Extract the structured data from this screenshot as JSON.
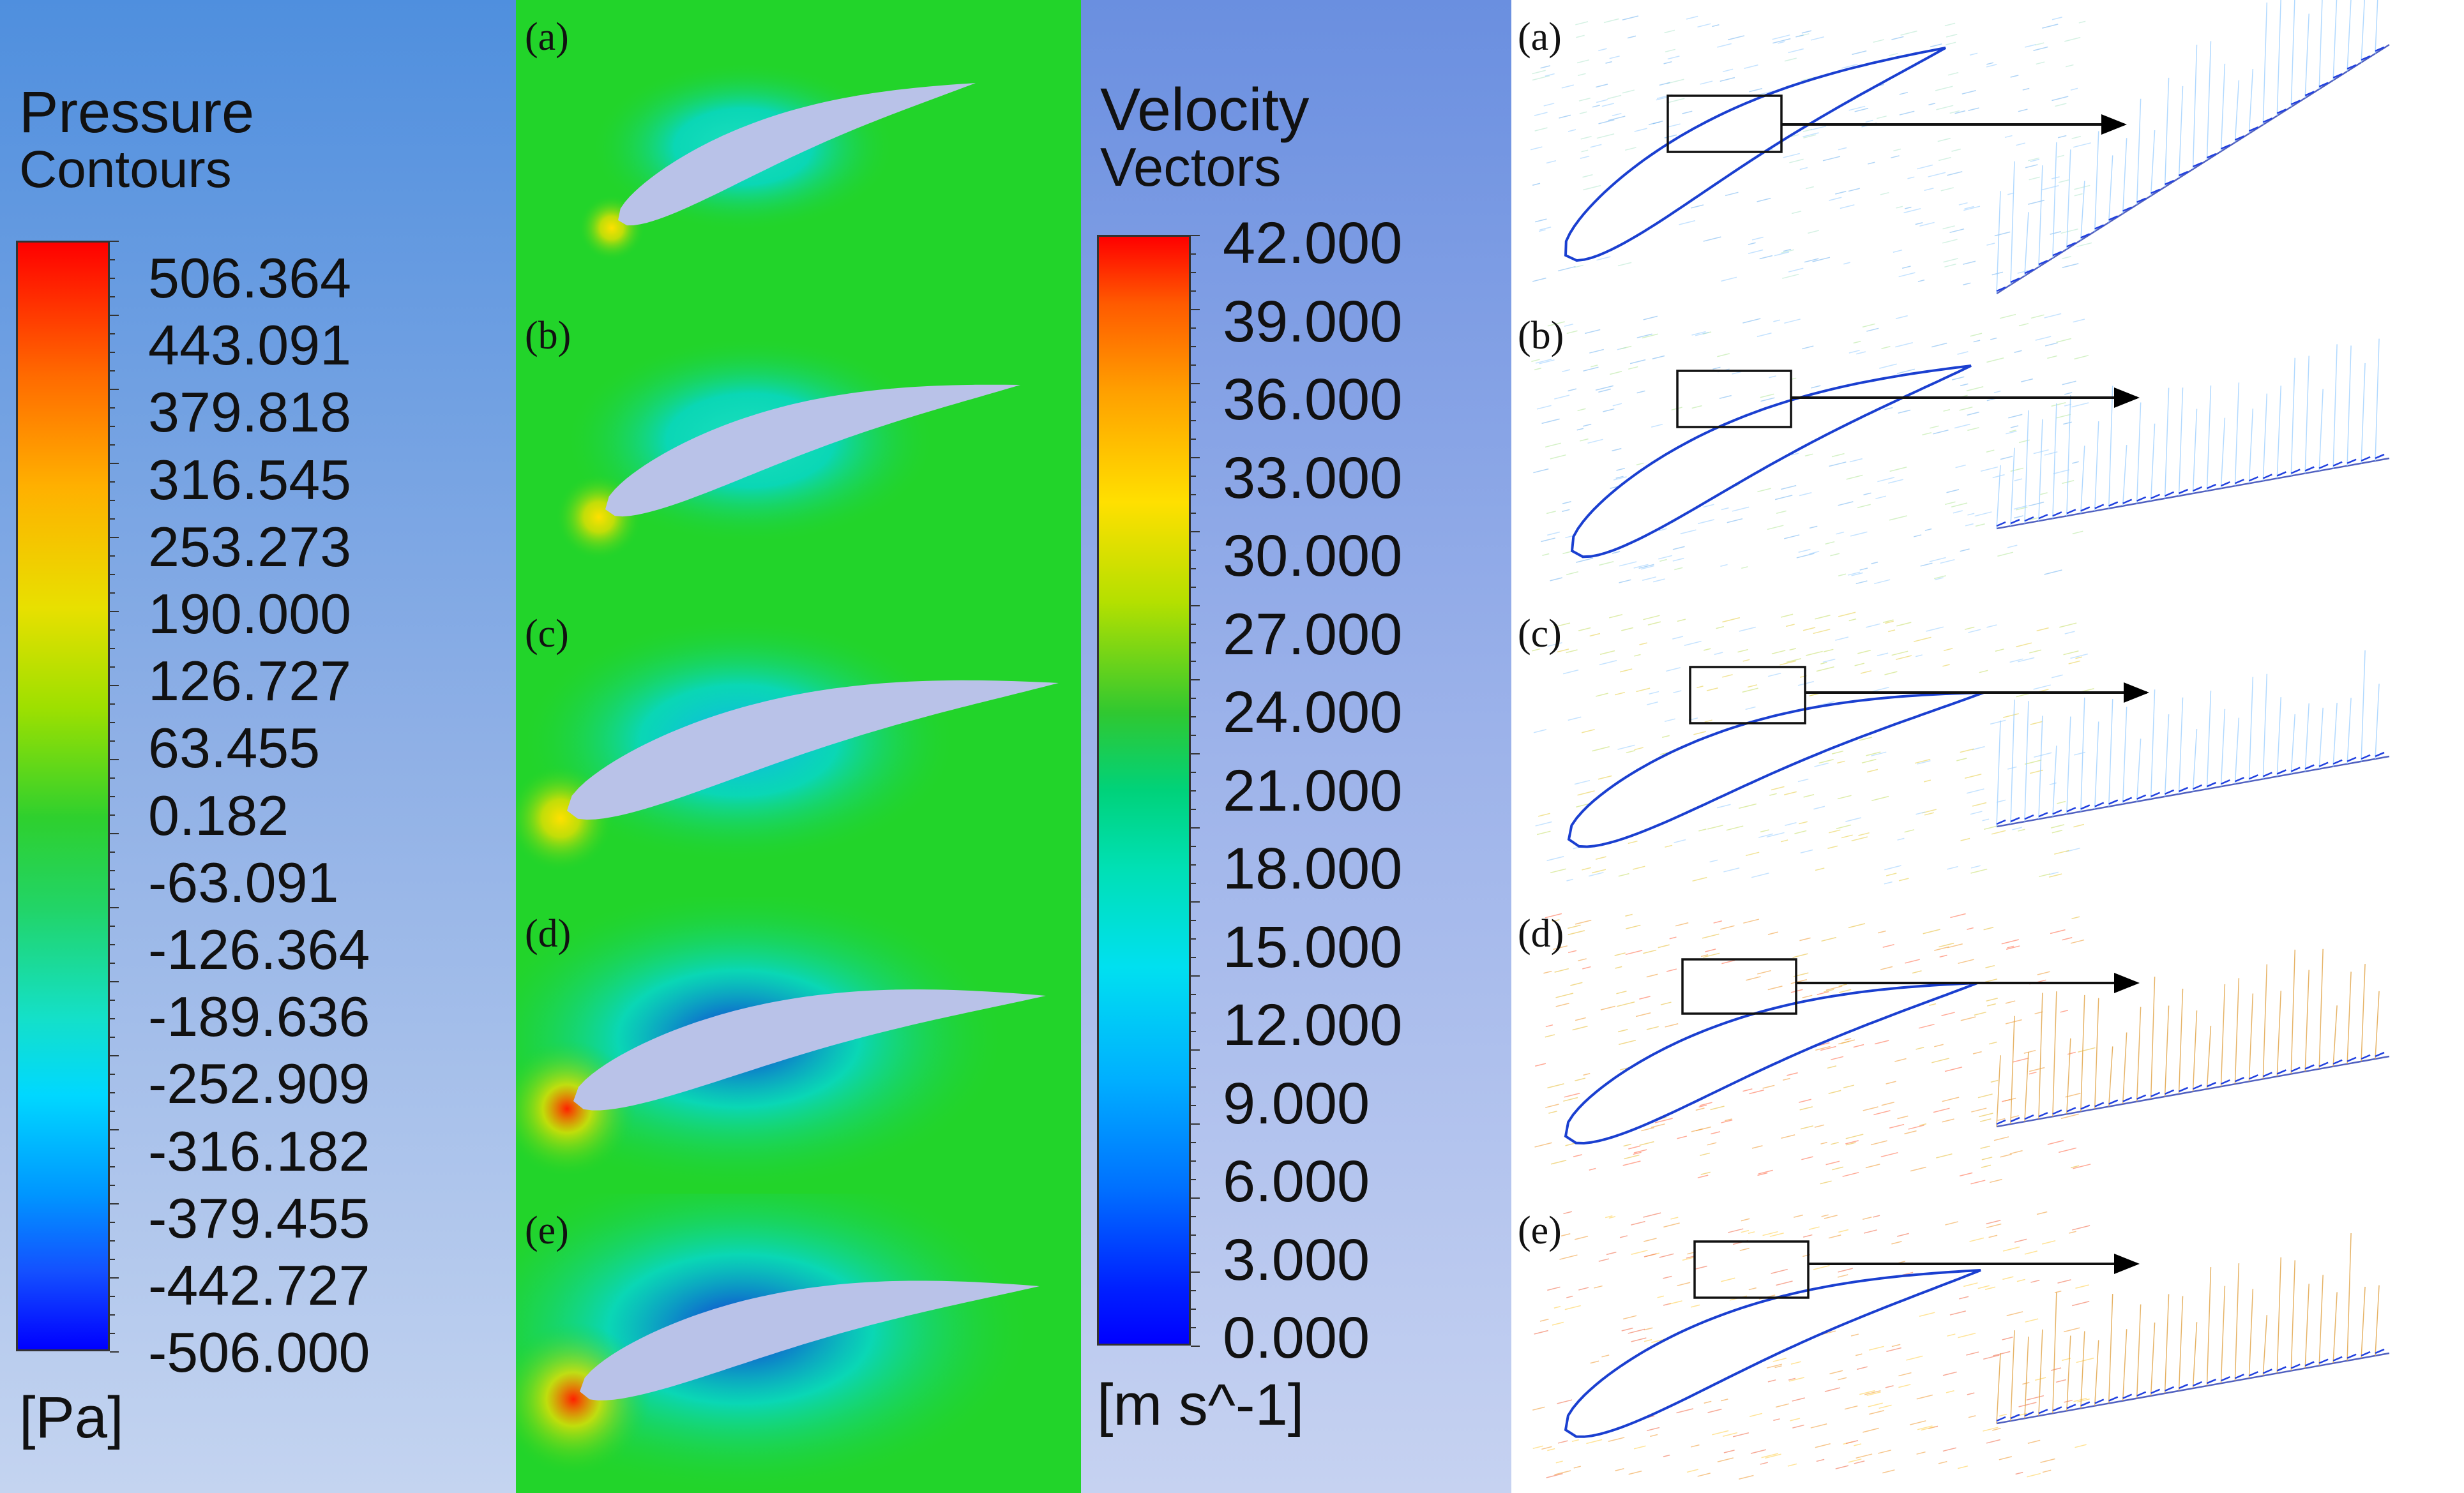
{
  "pressure_legend": {
    "title_line1": "Pressure",
    "title_line2": "Contours",
    "values": [
      "506.364",
      "443.091",
      "379.818",
      "316.545",
      "253.273",
      "190.000",
      "126.727",
      "63.455",
      "0.182",
      "-63.091",
      "-126.364",
      "-189.636",
      "-252.909",
      "-316.182",
      "-379.455",
      "-442.727",
      "-506.000"
    ],
    "unit": "[Pa]"
  },
  "velocity_legend": {
    "title_line1": "Velocity",
    "title_line2": "Vectors",
    "values": [
      "42.000",
      "39.000",
      "36.000",
      "33.000",
      "30.000",
      "27.000",
      "24.000",
      "21.000",
      "18.000",
      "15.000",
      "12.000",
      "9.000",
      "6.000",
      "3.000",
      "0.000"
    ],
    "unit": "[m s^-1]"
  },
  "contour_panels": [
    {
      "label": "(a)"
    },
    {
      "label": "(b)"
    },
    {
      "label": "(c)"
    },
    {
      "label": "(d)"
    },
    {
      "label": "(e)"
    }
  ],
  "vector_panels": [
    {
      "label": "(a)"
    },
    {
      "label": "(b)"
    },
    {
      "label": "(c)"
    },
    {
      "label": "(d)"
    },
    {
      "label": "(e)"
    }
  ],
  "colors": {
    "left_panel_top": "#4f8fde",
    "left_panel_bottom": "#bdd0ee",
    "mid_panel_top": "#6a8fe0",
    "mid_panel_bottom": "#bccbef",
    "field_green": "#22d42a",
    "airfoil": "#b9c2e8"
  }
}
